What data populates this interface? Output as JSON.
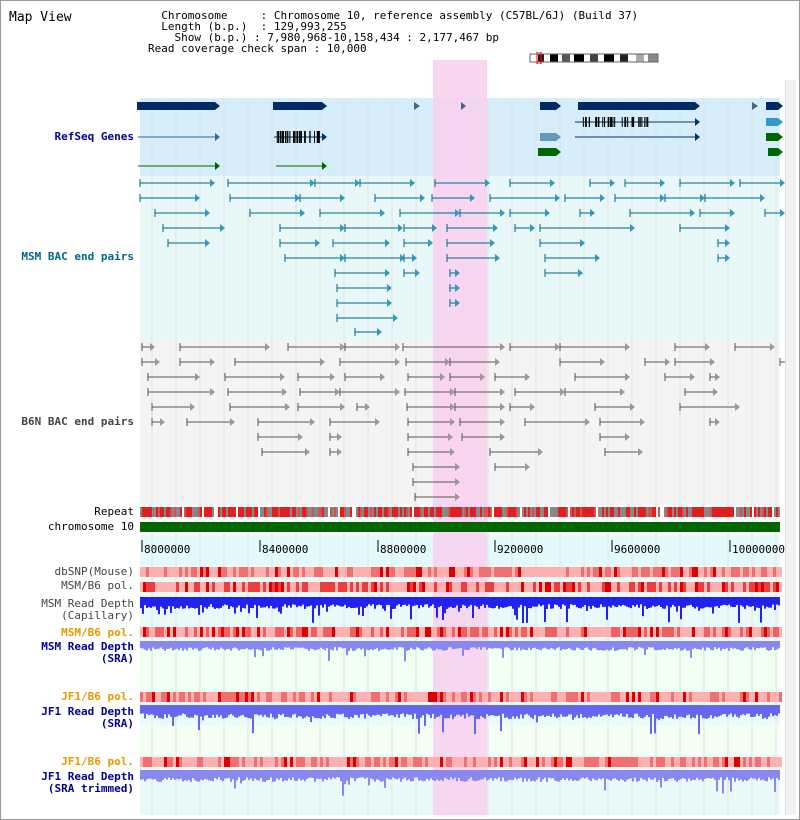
{
  "header": {
    "title": "Map View",
    "chromosome_label": "Chromosome",
    "chromosome_value": "Chromosome 10, reference assembly (C57BL/6J) (Build 37)",
    "length_label": "Length (b.p.)",
    "length_value": "129,993,255",
    "show_label": "Show (b.p.)",
    "show_value": "7,980,968-10,158,434 : 2,177,467 bp",
    "span_label": "Read coverage check span",
    "span_value": "10,000"
  },
  "tracks": {
    "refseq": "RefSeq Genes",
    "msm_bac": "MSM BAC end pairs",
    "b6n_bac": "B6N BAC end pairs",
    "repeat": "Repeat",
    "chromosome": "chromosome 10",
    "dbsnp": "dbSNP(Mouse)",
    "msm_b6_pol_1": "MSM/B6 pol.",
    "msm_read_depth_cap_1": "MSM Read Depth",
    "msm_read_depth_cap_2": "(Capillary)",
    "msm_b6_pol_2": "MSM/B6 pol.",
    "msm_read_depth_sra_1": "MSM Read Depth",
    "msm_read_depth_sra_2": "(SRA)",
    "jf1_b6_pol_1": "JF1/B6 pol.",
    "jf1_read_depth_sra_1": "JF1 Read Depth",
    "jf1_read_depth_sra_2": "(SRA)",
    "jf1_b6_pol_2": "JF1/B6 pol.",
    "jf1_read_depth_trim_1": "JF1 Read Depth",
    "jf1_read_depth_trim_2": "(SRA trimmed)"
  },
  "axis": {
    "ticks": [
      "8000000",
      "8400000",
      "8800000",
      "9200000",
      "9600000",
      "10000000"
    ]
  },
  "colors": {
    "refseq_label": "#000099",
    "msm_bac_label": "#006688",
    "b6n_bac_label": "#444444",
    "pol_orange": "#e69900",
    "depth_blue": "#000099",
    "highlight": "#f8d0ee"
  }
}
